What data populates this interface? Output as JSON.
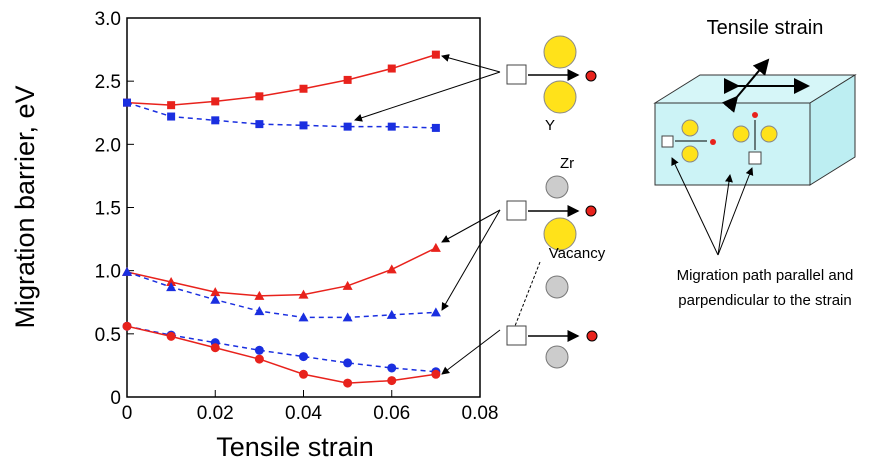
{
  "chart_data": {
    "type": "line",
    "xlabel": "Tensile strain",
    "ylabel": "Migration barrier, eV",
    "x": [
      0,
      0.01,
      0.02,
      0.03,
      0.04,
      0.05,
      0.06,
      0.07
    ],
    "series": [
      {
        "color": "#e8221c",
        "marker": "square",
        "linestyle": "solid",
        "values": [
          2.33,
          2.31,
          2.34,
          2.38,
          2.44,
          2.51,
          2.6,
          2.71
        ]
      },
      {
        "color": "#1a2fe0",
        "marker": "square",
        "linestyle": "dashed",
        "values": [
          2.33,
          2.22,
          2.19,
          2.16,
          2.15,
          2.14,
          2.14,
          2.13
        ]
      },
      {
        "color": "#e8221c",
        "marker": "triangle",
        "linestyle": "solid",
        "values": [
          0.99,
          0.91,
          0.83,
          0.8,
          0.81,
          0.88,
          1.01,
          1.18
        ]
      },
      {
        "color": "#1a2fe0",
        "marker": "triangle",
        "linestyle": "dashed",
        "values": [
          0.99,
          0.87,
          0.77,
          0.68,
          0.63,
          0.63,
          0.65,
          0.67
        ]
      },
      {
        "color": "#1a2fe0",
        "marker": "circle",
        "linestyle": "dashed",
        "values": [
          0.56,
          0.49,
          0.43,
          0.37,
          0.32,
          0.27,
          0.23,
          0.2
        ]
      },
      {
        "color": "#e8221c",
        "marker": "circle",
        "linestyle": "solid",
        "values": [
          0.56,
          0.48,
          0.39,
          0.3,
          0.18,
          0.11,
          0.13,
          0.18
        ]
      }
    ],
    "xlim": [
      0,
      0.08
    ],
    "xticks": [
      0,
      0.02,
      0.04,
      0.06,
      0.08
    ],
    "ylim": [
      0,
      3
    ],
    "yticks": [
      0,
      0.5,
      {
        "value": 1,
        "label": "1.0"
      },
      1.5,
      {
        "value": 2,
        "label": "2.0"
      },
      2.5,
      {
        "value": 3,
        "label": "3.0"
      }
    ],
    "annotations": {
      "y_atom": "Y",
      "zr_atom": "Zr",
      "vacancy": "Vacancy",
      "inset_title": "Tensile strain",
      "inset_caption": [
        "Migration path parallel and",
        "parpendicular to the strain"
      ]
    }
  }
}
